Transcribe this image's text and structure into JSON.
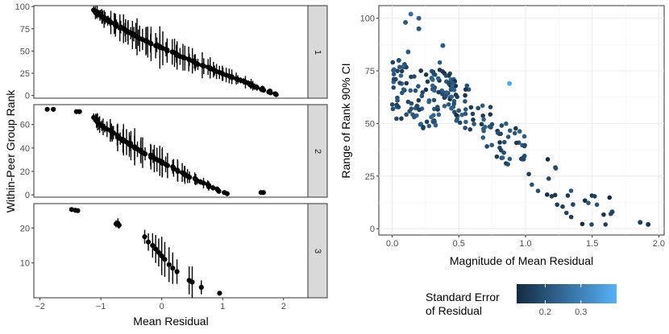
{
  "chart_data": [
    {
      "type": "scatter",
      "subtype": "faceted-errorbar",
      "xlabel": "Mean Residual",
      "ylabel": "Within-Peer Group Rank",
      "xlim": [
        -2.1,
        2.4
      ],
      "xticks": [
        -2,
        -1,
        0,
        1,
        2
      ],
      "x_tick_labels": [
        "−2",
        "−1",
        "0",
        "1",
        "2"
      ],
      "facets": [
        {
          "label": "1",
          "ylim": [
            -3,
            101
          ],
          "yticks": [
            0,
            25,
            50,
            75,
            100
          ],
          "y_tick_labels": [
            "0",
            "25",
            "50",
            "75",
            "100"
          ],
          "rank_max": 96,
          "x_range": [
            -1.1,
            1.9
          ],
          "points_seed": 11
        },
        {
          "label": "2",
          "ylim": [
            -2,
            77
          ],
          "yticks": [
            0,
            20,
            40,
            60
          ],
          "y_tick_labels": [
            "0",
            "20",
            "40",
            "60"
          ],
          "rank_max": 66,
          "x_range": [
            -1.1,
            1.05
          ],
          "outliers": [
            [
              -1.88,
              73
            ],
            [
              -1.78,
              73
            ],
            [
              -1.4,
              71
            ],
            [
              -1.35,
              71
            ],
            [
              1.63,
              2
            ],
            [
              1.67,
              2
            ]
          ],
          "points_seed": 23
        },
        {
          "label": "3",
          "ylim": [
            0,
            27
          ],
          "yticks": [
            10,
            20
          ],
          "y_tick_labels": [
            "10",
            "20"
          ],
          "points": [
            [
              -1.48,
              25.3,
              0.4
            ],
            [
              -1.42,
              25.1,
              0.5
            ],
            [
              -1.38,
              25,
              0.4
            ],
            [
              -0.75,
              21.2,
              1.0
            ],
            [
              -0.72,
              21.4,
              1.4
            ],
            [
              -0.7,
              20.8,
              1.0
            ],
            [
              -0.28,
              17.5,
              2.0
            ],
            [
              -0.22,
              16,
              2.5
            ],
            [
              -0.15,
              15,
              3.5
            ],
            [
              -0.1,
              14,
              4.0
            ],
            [
              -0.05,
              13,
              4.0
            ],
            [
              0.0,
              12,
              5.5
            ],
            [
              0.05,
              11,
              5.0
            ],
            [
              0.12,
              9.5,
              5.0
            ],
            [
              0.18,
              8.5,
              4.5
            ],
            [
              0.25,
              7.5,
              3.5
            ],
            [
              0.45,
              5,
              4.0
            ],
            [
              0.5,
              4.5,
              4.5
            ],
            [
              0.65,
              3,
              2.0
            ],
            [
              0.95,
              1.3,
              0.3
            ]
          ]
        }
      ]
    },
    {
      "type": "scatter",
      "xlabel": "Magnitude of Mean Residual",
      "ylabel": "Range of Rank 90% CI",
      "xlim": [
        -0.1,
        2.04
      ],
      "ylim": [
        -3,
        106
      ],
      "xticks": [
        0.0,
        0.5,
        1.0,
        1.5,
        2.0
      ],
      "x_tick_labels": [
        "0.0",
        "0.5",
        "1.0",
        "1.5",
        "2.0"
      ],
      "yticks": [
        0,
        25,
        50,
        75,
        100
      ],
      "y_tick_labels": [
        "0",
        "25",
        "50",
        "75",
        "100"
      ],
      "highlight_points": [
        [
          0.14,
          102,
          0.26
        ],
        [
          0.2,
          100,
          0.23
        ],
        [
          0.1,
          98,
          0.22
        ],
        [
          0.2,
          95,
          0.21
        ],
        [
          0.88,
          69,
          0.38
        ],
        [
          0.38,
          87,
          0.22
        ],
        [
          0.05,
          80,
          0.2
        ],
        [
          0.12,
          84,
          0.22
        ],
        [
          1.86,
          3,
          0.16
        ],
        [
          1.92,
          2,
          0.15
        ],
        [
          1.65,
          8,
          0.17
        ]
      ],
      "points_seed": 37
    }
  ],
  "legend": {
    "title_line1": "Standard Error",
    "title_line2": "of Residual",
    "tick_labels": [
      "0.2",
      "0.3"
    ],
    "tick_values": [
      0.2,
      0.3
    ],
    "range": [
      0.12,
      0.4
    ],
    "color_low": "#132B43",
    "color_high": "#56B1F7"
  }
}
